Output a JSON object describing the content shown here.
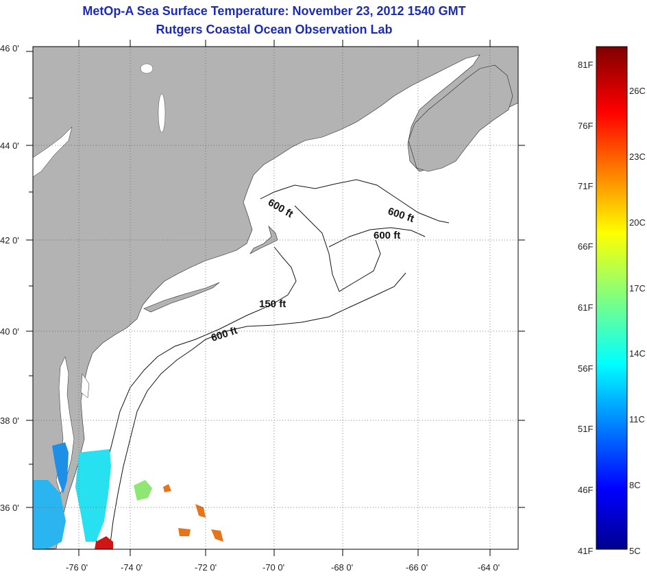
{
  "title": {
    "line1": "MetOp-A Sea Surface Temperature:  November 23, 2012 1540 GMT",
    "line2": "Rutgers Coastal Ocean Observation Lab"
  },
  "map": {
    "lat_ticks": [
      "46 0'",
      "44 0'",
      "42 0'",
      "40 0'",
      "38 0'",
      "36 0'"
    ],
    "lon_ticks": [
      "-76 0'",
      "-74 0'",
      "-72 0'",
      "-70 0'",
      "-68 0'",
      "-66 0'",
      "-64 0'"
    ],
    "contour_labels": [
      "600 ft",
      "600 ft",
      "600 ft",
      "150 ft",
      "600 ft"
    ],
    "land_color": "#b3b3b3",
    "ocean_color": "#ffffff"
  },
  "colorbar": {
    "f_labels": [
      "81F",
      "76F",
      "71F",
      "66F",
      "61F",
      "56F",
      "51F",
      "46F",
      "41F"
    ],
    "c_labels": [
      "26C",
      "23C",
      "20C",
      "17C",
      "14C",
      "11C",
      "8C",
      "5C"
    ]
  }
}
